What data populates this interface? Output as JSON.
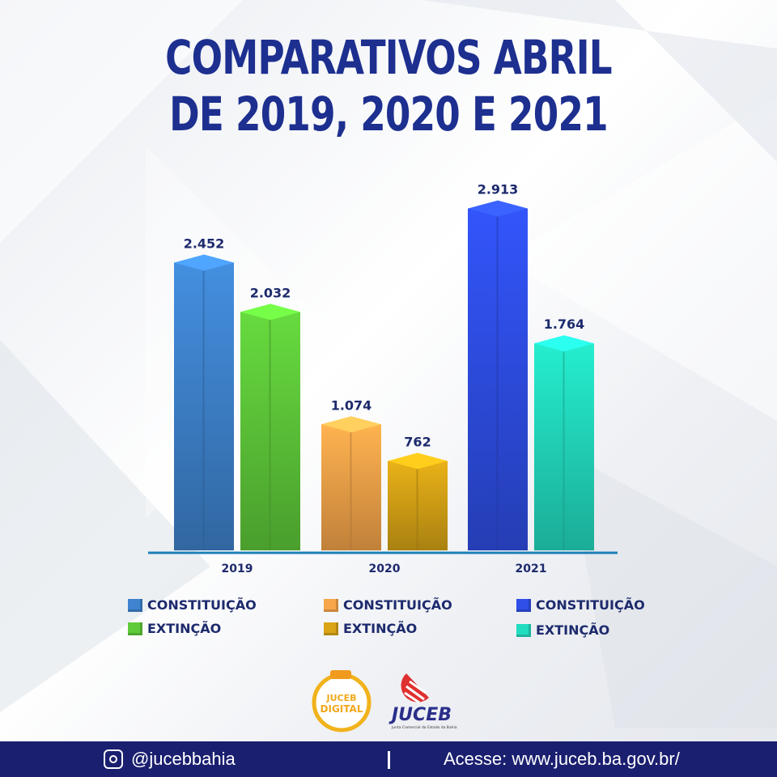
{
  "title_lines": [
    "COMPARATIVOS ABRIL",
    "DE 2019, 2020 E 2021"
  ],
  "chart_data": {
    "type": "bar",
    "categories": [
      "2019",
      "2020",
      "2021"
    ],
    "series": [
      {
        "name": "CONSTITUIÇÃO",
        "values": [
          2452,
          1074,
          2913
        ],
        "labels": [
          "2.452",
          "1.074",
          "2.913"
        ],
        "colors": [
          "#3f84cf",
          "#f7a64a",
          "#2f4fe8"
        ]
      },
      {
        "name": "EXTINÇÃO",
        "values": [
          2032,
          762,
          1764
        ],
        "labels": [
          "2.032",
          "762",
          "1.764"
        ],
        "colors": [
          "#5fcb3a",
          "#d9a516",
          "#22dcc0"
        ]
      }
    ],
    "ylim": [
      0,
      3000
    ],
    "grid": false,
    "legend": [
      {
        "label": "CONSTITUIÇÃO",
        "color": "#3f84cf"
      },
      {
        "label": "EXTINÇÃO",
        "color": "#5fcb3a"
      },
      {
        "label": "CONSTITUIÇÃO",
        "color": "#f7a64a"
      },
      {
        "label": "EXTINÇÃO",
        "color": "#d9a516"
      },
      {
        "label": "CONSTITUIÇÃO",
        "color": "#2f4fe8"
      },
      {
        "label": "EXTINÇÃO",
        "color": "#22dcc0"
      }
    ]
  },
  "logos": {
    "juceb_digital": [
      "JUCEB",
      "DIGITAL"
    ],
    "juceb": "JUCEB",
    "juceb_subtitle": "Junta Comercial do Estado da Bahia"
  },
  "footer": {
    "instagram": "@jucebbahia",
    "site": "Acesse: www.juceb.ba.gov.br/"
  },
  "colors": {
    "title": "#1d2f8f",
    "footer_bg": "#1a1f6f",
    "axis": "#1d7fb8"
  }
}
